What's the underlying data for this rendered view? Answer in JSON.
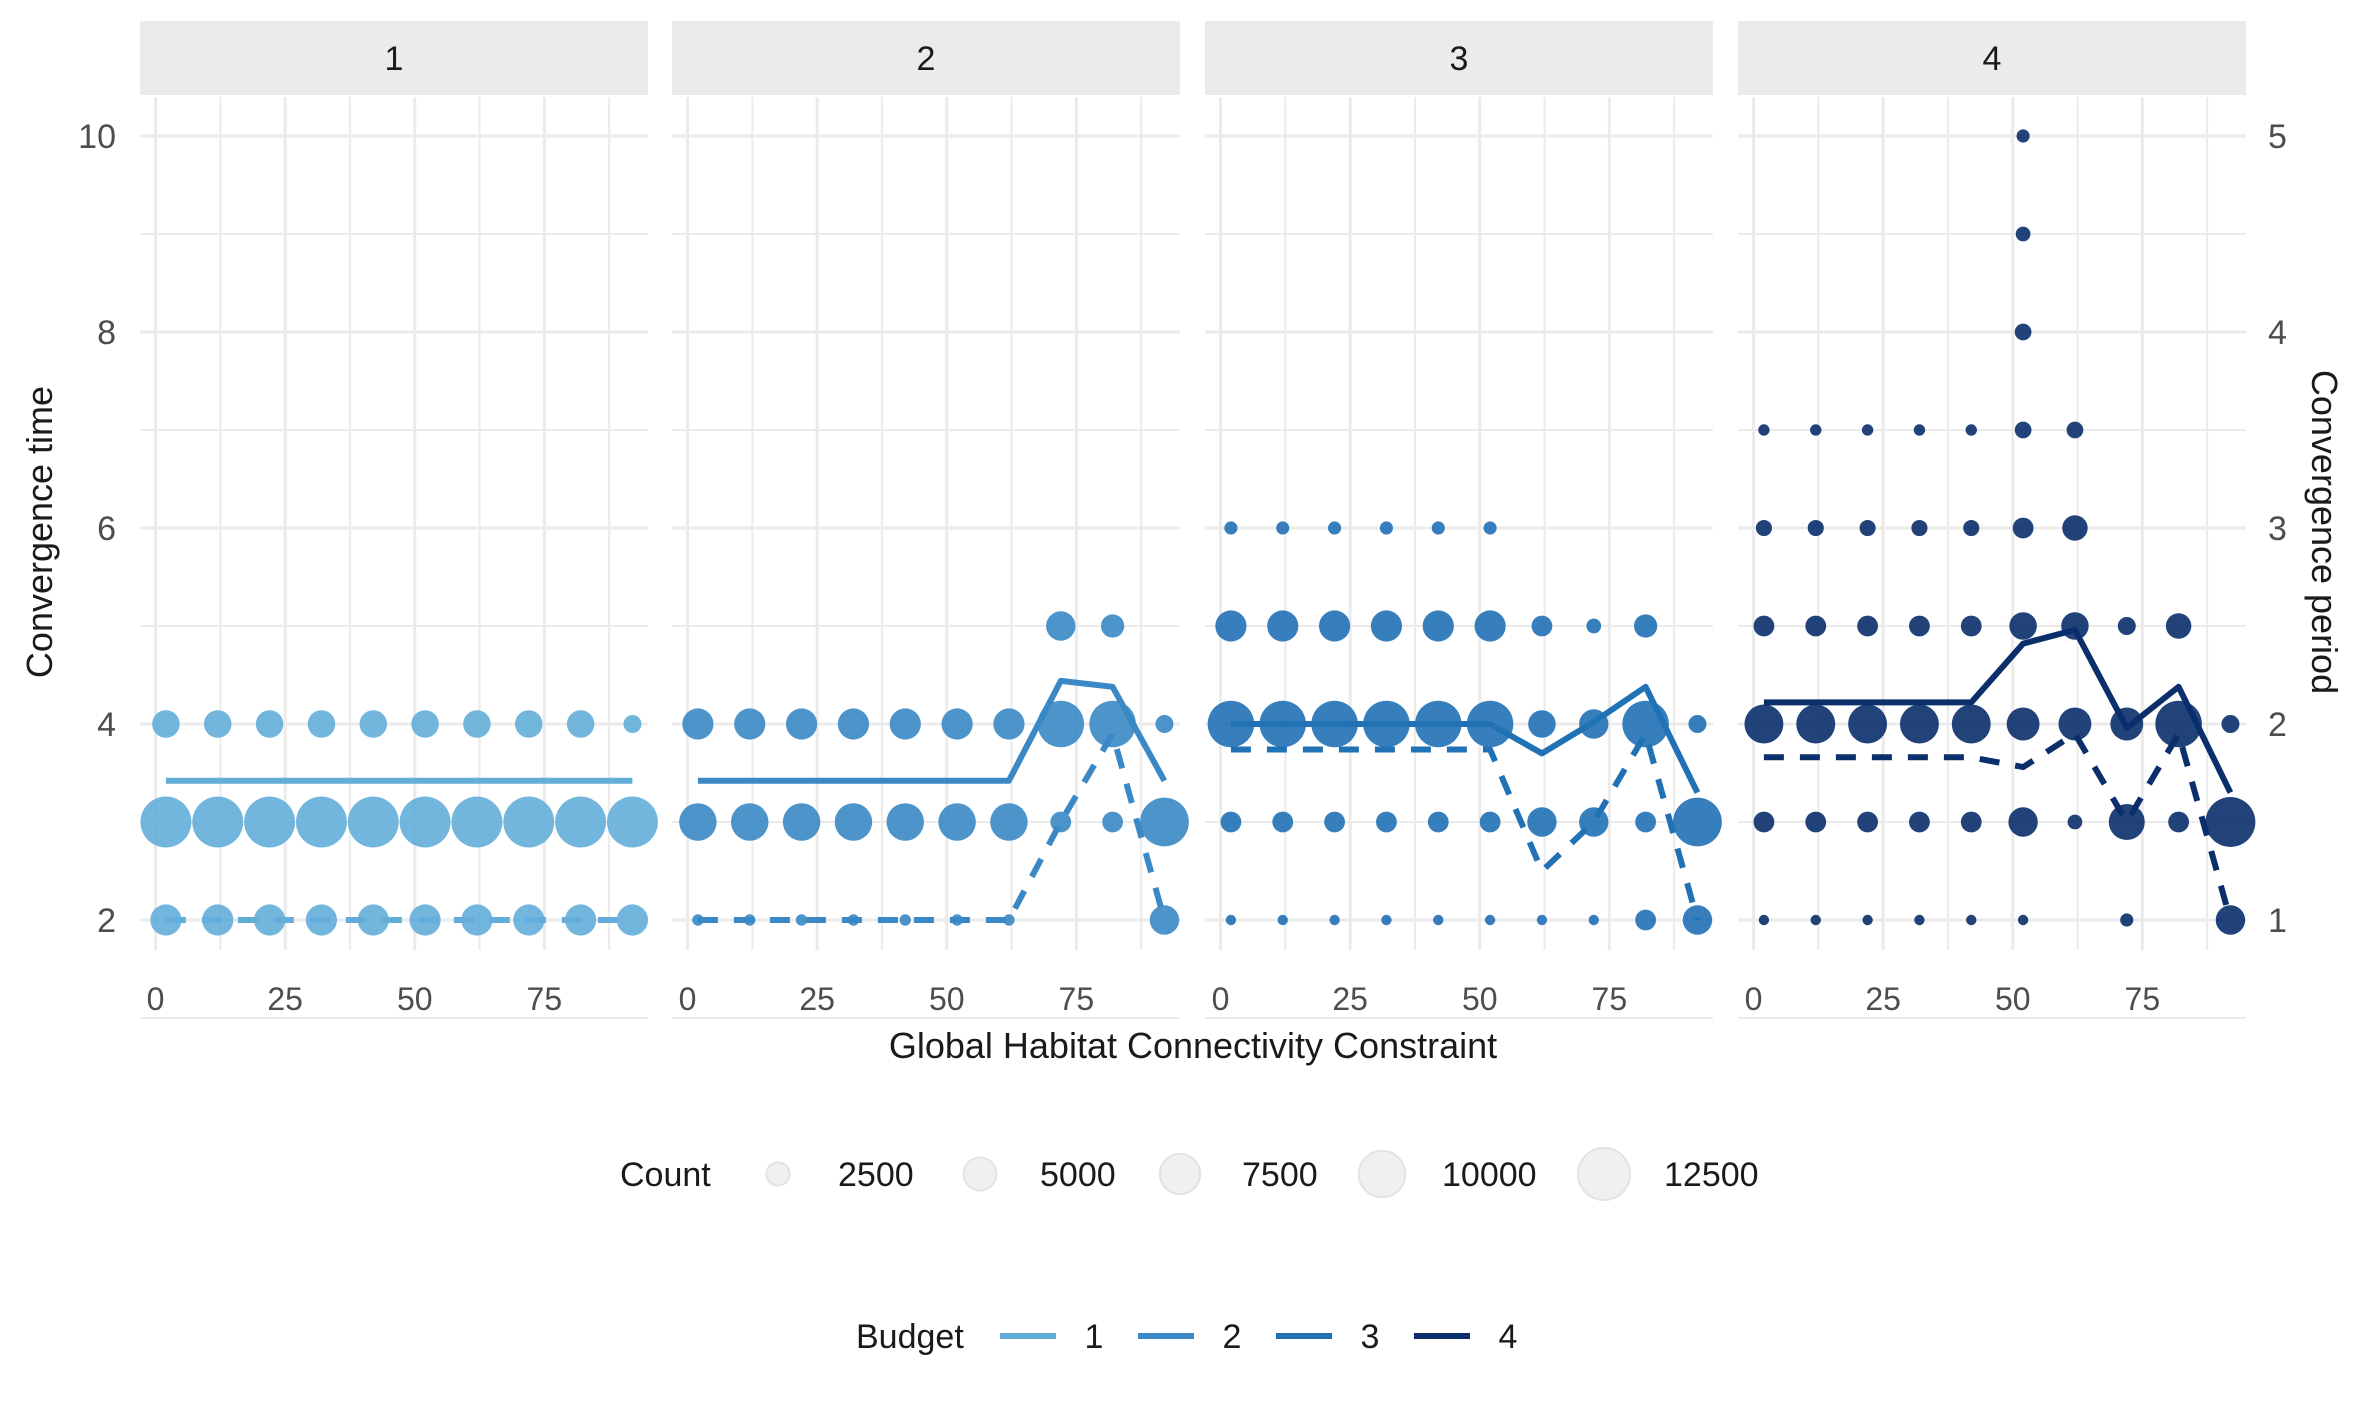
{
  "chart_data": {
    "type": "scatter",
    "facets": [
      "1",
      "2",
      "3",
      "4"
    ],
    "xlabel": "Global Habitat Connectivity Constraint",
    "ylabel": "Convergence time",
    "ylabel_right": "Convergence period",
    "x_ticks": [
      0,
      25,
      50,
      75
    ],
    "y_ticks": [
      2,
      4,
      6,
      8,
      10
    ],
    "y_right_ticks": [
      1,
      2,
      3,
      4,
      5
    ],
    "xlim": [
      -3,
      95
    ],
    "ylim": [
      1.6,
      10.4
    ],
    "grid": true,
    "legend_position": "bottom",
    "colors": {
      "1": "#63aed9",
      "2": "#3a88c5",
      "3": "#2171b5",
      "4": "#0a2f6b",
      "strip": "#ebebeb",
      "grid": "#ebebeb",
      "text": "#4d4d4d",
      "title": "#1a1a1a"
    },
    "size_legend": {
      "title": "Count",
      "values": [
        2500,
        5000,
        7500,
        10000,
        12500
      ]
    },
    "color_legend": {
      "title": "Budget",
      "entries": [
        "1",
        "2",
        "3",
        "4"
      ]
    },
    "x_positions": [
      2,
      12,
      22,
      32,
      42,
      52,
      62,
      72,
      82,
      92
    ],
    "points": {
      "1": [
        {
          "y": 4,
          "c": [
            3500,
            3500,
            3500,
            3500,
            3500,
            3500,
            3500,
            3500,
            3500,
            1500
          ]
        },
        {
          "y": 3,
          "c": [
            12000,
            12000,
            12000,
            12000,
            12000,
            12000,
            12000,
            12000,
            12000,
            12000
          ]
        },
        {
          "y": 2,
          "c": [
            4500,
            4500,
            4500,
            4500,
            4500,
            4500,
            4500,
            4500,
            4500,
            4500
          ]
        }
      ],
      "2": [
        {
          "y": 5,
          "c": [
            0,
            0,
            0,
            0,
            0,
            0,
            0,
            4000,
            2500,
            0
          ]
        },
        {
          "y": 4,
          "c": [
            4500,
            4500,
            4500,
            4500,
            4500,
            4500,
            4500,
            10000,
            10000,
            1500
          ]
        },
        {
          "y": 3,
          "c": [
            6500,
            6500,
            6500,
            6500,
            6500,
            6500,
            6500,
            2000,
            2000,
            11000
          ]
        },
        {
          "y": 2,
          "c": [
            600,
            600,
            600,
            600,
            600,
            600,
            600,
            0,
            0,
            4000
          ]
        }
      ],
      "3": [
        {
          "y": 6,
          "c": [
            800,
            800,
            800,
            800,
            800,
            800,
            0,
            0,
            0,
            0
          ]
        },
        {
          "y": 5,
          "c": [
            4500,
            4500,
            4500,
            4500,
            4500,
            4500,
            2000,
            1000,
            2500,
            0
          ]
        },
        {
          "y": 4,
          "c": [
            10000,
            10000,
            10000,
            10000,
            10000,
            10000,
            3500,
            4000,
            10000,
            1500
          ]
        },
        {
          "y": 3,
          "c": [
            2000,
            2000,
            2000,
            2000,
            2000,
            2000,
            4000,
            4000,
            2000,
            11000
          ]
        },
        {
          "y": 2,
          "c": [
            500,
            500,
            500,
            500,
            500,
            500,
            500,
            500,
            2000,
            4000
          ]
        }
      ],
      "4": [
        {
          "y": 10,
          "c": [
            0,
            0,
            0,
            0,
            0,
            800,
            0,
            0,
            0,
            0
          ]
        },
        {
          "y": 9,
          "c": [
            0,
            0,
            0,
            0,
            0,
            1000,
            0,
            0,
            0,
            0
          ]
        },
        {
          "y": 8,
          "c": [
            0,
            0,
            0,
            0,
            0,
            1300,
            0,
            0,
            0,
            0
          ]
        },
        {
          "y": 7,
          "c": [
            600,
            600,
            600,
            600,
            600,
            1300,
            1300,
            0,
            0,
            0
          ]
        },
        {
          "y": 6,
          "c": [
            1200,
            1200,
            1200,
            1200,
            1200,
            2000,
            3000,
            0,
            0,
            0
          ]
        },
        {
          "y": 5,
          "c": [
            2000,
            2000,
            2000,
            2000,
            2000,
            3500,
            3500,
            1500,
            3000,
            0
          ]
        },
        {
          "y": 4,
          "c": [
            7000,
            7000,
            7000,
            7000,
            7000,
            5000,
            5000,
            5000,
            10000,
            1500
          ]
        },
        {
          "y": 3,
          "c": [
            2000,
            2000,
            2000,
            2000,
            2000,
            4000,
            1000,
            6000,
            2000,
            11500
          ]
        },
        {
          "y": 2,
          "c": [
            500,
            500,
            500,
            500,
            500,
            500,
            0,
            800,
            0,
            4000
          ]
        }
      ]
    },
    "lines": {
      "1": {
        "solid": [
          [
            2,
            3.42
          ],
          [
            92,
            3.42
          ]
        ],
        "dashed": [
          [
            2,
            2.0
          ],
          [
            92,
            2.0
          ]
        ]
      },
      "2": {
        "solid": [
          [
            2,
            3.42
          ],
          [
            62,
            3.42
          ],
          [
            72,
            4.44
          ],
          [
            82,
            4.38
          ],
          [
            92,
            3.42
          ]
        ],
        "dashed": [
          [
            2,
            2.0
          ],
          [
            62,
            2.0
          ],
          [
            72,
            3.0
          ],
          [
            82,
            3.9
          ],
          [
            92,
            2.0
          ]
        ]
      },
      "3": {
        "solid": [
          [
            2,
            4.0
          ],
          [
            52,
            4.0
          ],
          [
            62,
            3.7
          ],
          [
            72,
            4.02
          ],
          [
            82,
            4.38
          ],
          [
            92,
            3.3
          ]
        ],
        "dashed": [
          [
            2,
            3.74
          ],
          [
            52,
            3.74
          ],
          [
            62,
            2.5
          ],
          [
            72,
            3.0
          ],
          [
            82,
            3.9
          ],
          [
            92,
            2.0
          ]
        ]
      },
      "4": {
        "solid": [
          [
            2,
            4.22
          ],
          [
            42,
            4.22
          ],
          [
            52,
            4.82
          ],
          [
            62,
            4.96
          ],
          [
            72,
            3.96
          ],
          [
            82,
            4.38
          ],
          [
            92,
            3.3
          ]
        ],
        "dashed": [
          [
            2,
            3.66
          ],
          [
            42,
            3.66
          ],
          [
            52,
            3.56
          ],
          [
            62,
            3.9
          ],
          [
            72,
            3.0
          ],
          [
            82,
            3.9
          ],
          [
            92,
            2.0
          ]
        ]
      }
    }
  }
}
